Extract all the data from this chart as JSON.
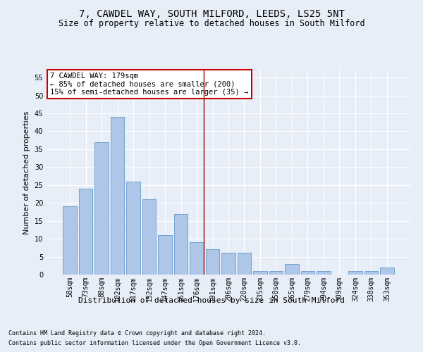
{
  "title": "7, CAWDEL WAY, SOUTH MILFORD, LEEDS, LS25 5NT",
  "subtitle": "Size of property relative to detached houses in South Milford",
  "xlabel": "Distribution of detached houses by size in South Milford",
  "ylabel": "Number of detached properties",
  "categories": [
    "58sqm",
    "73sqm",
    "88sqm",
    "102sqm",
    "117sqm",
    "132sqm",
    "147sqm",
    "161sqm",
    "176sqm",
    "191sqm",
    "206sqm",
    "220sqm",
    "235sqm",
    "250sqm",
    "265sqm",
    "279sqm",
    "294sqm",
    "309sqm",
    "324sqm",
    "338sqm",
    "353sqm"
  ],
  "values": [
    19,
    24,
    37,
    44,
    26,
    21,
    11,
    17,
    9,
    7,
    6,
    6,
    1,
    1,
    3,
    1,
    1,
    0,
    1,
    1,
    2
  ],
  "bar_color": "#aec6e8",
  "bar_edge_color": "#6699cc",
  "background_color": "#e8eef8",
  "grid_color": "#ffffff",
  "vline_x_index": 8,
  "vline_color": "#990000",
  "annotation_line1": "7 CAWDEL WAY: 179sqm",
  "annotation_line2": "← 85% of detached houses are smaller (200)",
  "annotation_line3": "15% of semi-detached houses are larger (35) →",
  "annotation_box_color": "#ffffff",
  "annotation_box_edge_color": "#cc0000",
  "ylim": [
    0,
    57
  ],
  "yticks": [
    0,
    5,
    10,
    15,
    20,
    25,
    30,
    35,
    40,
    45,
    50,
    55
  ],
  "footer1": "Contains HM Land Registry data © Crown copyright and database right 2024.",
  "footer2": "Contains public sector information licensed under the Open Government Licence v3.0.",
  "title_fontsize": 10,
  "subtitle_fontsize": 8.5,
  "xlabel_fontsize": 8,
  "ylabel_fontsize": 8,
  "tick_fontsize": 7,
  "annotation_fontsize": 7.5,
  "footer_fontsize": 6
}
